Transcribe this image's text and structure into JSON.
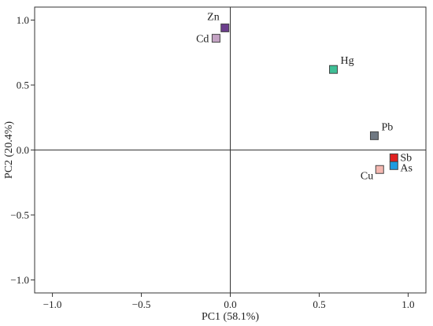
{
  "chart_data": {
    "type": "scatter",
    "title": "",
    "xlabel": "PC1 (58.1%)",
    "ylabel": "PC2 (20.4%)",
    "xlim": [
      -1.1,
      1.1
    ],
    "ylim": [
      -1.1,
      1.1
    ],
    "x_ticks": [
      -1.0,
      -0.5,
      0.0,
      0.5,
      1.0
    ],
    "x_tick_labels": [
      "−1.0",
      "−0.5",
      "0.0",
      "0.5",
      "1.0"
    ],
    "y_ticks": [
      -1.0,
      -0.5,
      0.0,
      0.5,
      1.0
    ],
    "y_tick_labels": [
      "−1.0",
      "−0.5",
      "0.0",
      "0.5",
      "1.0"
    ],
    "grid": false,
    "reference_lines": {
      "x": 0,
      "y": 0
    },
    "points": [
      {
        "label": "Zn",
        "x": -0.03,
        "y": 0.94,
        "color": "#6b3d8c",
        "label_anchor": "top-left"
      },
      {
        "label": "Cd",
        "x": -0.08,
        "y": 0.86,
        "color": "#c4a3c4",
        "label_anchor": "left"
      },
      {
        "label": "Hg",
        "x": 0.58,
        "y": 0.62,
        "color": "#3fbf96",
        "label_anchor": "top-right"
      },
      {
        "label": "Pb",
        "x": 0.81,
        "y": 0.11,
        "color": "#6f7882",
        "label_anchor": "top-right"
      },
      {
        "label": "Sb",
        "x": 0.92,
        "y": -0.06,
        "color": "#e02020",
        "label_anchor": "right"
      },
      {
        "label": "As",
        "x": 0.92,
        "y": -0.12,
        "color": "#1e9be0",
        "label_anchor": "right-below"
      },
      {
        "label": "Cu",
        "x": 0.84,
        "y": -0.15,
        "color": "#f4b7b0",
        "label_anchor": "left-below"
      }
    ]
  }
}
